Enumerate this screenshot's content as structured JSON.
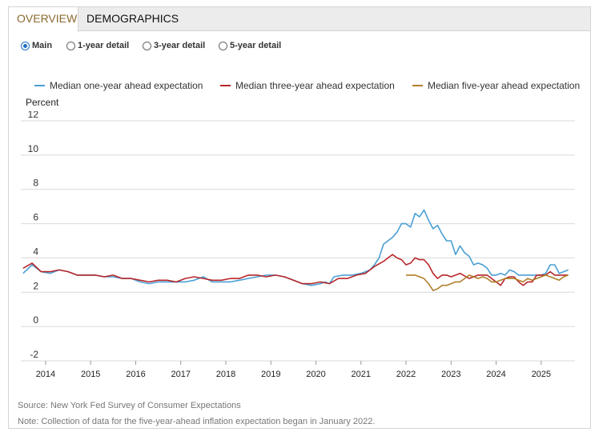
{
  "tabs": [
    {
      "label": "OVERVIEW",
      "active": true
    },
    {
      "label": "DEMOGRAPHICS",
      "active": false
    }
  ],
  "view_options": [
    {
      "label": "Main",
      "selected": true
    },
    {
      "label": "1-year detail",
      "selected": false
    },
    {
      "label": "3-year detail",
      "selected": false
    },
    {
      "label": "5-year detail",
      "selected": false
    }
  ],
  "source": "Source: New York Fed Survey of Consumer Expectations",
  "note": "Note: Collection of data for the five-year-ahead inflation expectation began in January 2022.",
  "chart_data": {
    "type": "line",
    "title": "",
    "xlabel": "",
    "ylabel": "Percent",
    "xlim": [
      2013.45,
      2025.75
    ],
    "ylim": [
      -2,
      12
    ],
    "yticks": [
      12,
      10,
      8,
      6,
      4,
      2,
      0,
      -2
    ],
    "xticks": [
      2014,
      2015,
      2016,
      2017,
      2018,
      2019,
      2020,
      2021,
      2022,
      2023,
      2024,
      2025
    ],
    "grid": true,
    "legend_position": "top",
    "series": [
      {
        "name": "Median one-year ahead expectation",
        "color": "#4a9fd4",
        "x": [
          2013.5,
          2013.7,
          2013.9,
          2014.1,
          2014.3,
          2014.5,
          2014.7,
          2014.9,
          2015.1,
          2015.3,
          2015.5,
          2015.7,
          2015.9,
          2016.1,
          2016.3,
          2016.5,
          2016.7,
          2016.9,
          2017.1,
          2017.3,
          2017.5,
          2017.7,
          2017.9,
          2018.1,
          2018.3,
          2018.5,
          2018.7,
          2018.9,
          2019.1,
          2019.3,
          2019.5,
          2019.7,
          2019.9,
          2020.1,
          2020.2,
          2020.3,
          2020.4,
          2020.6,
          2020.8,
          2021.0,
          2021.1,
          2021.2,
          2021.3,
          2021.4,
          2021.5,
          2021.6,
          2021.7,
          2021.8,
          2021.9,
          2022.0,
          2022.1,
          2022.2,
          2022.3,
          2022.4,
          2022.5,
          2022.6,
          2022.7,
          2022.8,
          2022.9,
          2023.0,
          2023.1,
          2023.2,
          2023.3,
          2023.4,
          2023.5,
          2023.6,
          2023.7,
          2023.8,
          2023.9,
          2024.0,
          2024.1,
          2024.2,
          2024.3,
          2024.4,
          2024.5,
          2024.6,
          2024.7,
          2024.8,
          2024.9,
          2025.0,
          2025.1,
          2025.2,
          2025.3,
          2025.4,
          2025.5,
          2025.6
        ],
        "y": [
          3.1,
          3.6,
          3.2,
          3.1,
          3.3,
          3.2,
          3.0,
          3.0,
          3.0,
          2.9,
          2.9,
          2.8,
          2.8,
          2.6,
          2.5,
          2.6,
          2.6,
          2.6,
          2.6,
          2.7,
          2.9,
          2.6,
          2.6,
          2.6,
          2.7,
          2.8,
          2.9,
          3.0,
          3.0,
          2.9,
          2.7,
          2.5,
          2.4,
          2.5,
          2.6,
          2.5,
          2.9,
          3.0,
          3.0,
          3.1,
          3.2,
          3.3,
          3.6,
          4.0,
          4.8,
          5.0,
          5.2,
          5.5,
          6.0,
          6.0,
          5.8,
          6.6,
          6.4,
          6.8,
          6.2,
          5.7,
          5.9,
          5.4,
          5.0,
          5.0,
          4.2,
          4.7,
          4.3,
          4.1,
          3.6,
          3.7,
          3.6,
          3.4,
          3.0,
          3.0,
          3.1,
          3.0,
          3.3,
          3.2,
          3.0,
          3.0,
          3.0,
          3.0,
          3.0,
          3.0,
          3.1,
          3.6,
          3.6,
          3.1,
          3.2,
          3.3
        ]
      },
      {
        "name": "Median three-year ahead expectation",
        "color": "#b8262b",
        "x": [
          2013.5,
          2013.7,
          2013.9,
          2014.1,
          2014.3,
          2014.5,
          2014.7,
          2014.9,
          2015.1,
          2015.3,
          2015.5,
          2015.7,
          2015.9,
          2016.1,
          2016.3,
          2016.5,
          2016.7,
          2016.9,
          2017.1,
          2017.3,
          2017.5,
          2017.7,
          2017.9,
          2018.1,
          2018.3,
          2018.5,
          2018.7,
          2018.9,
          2019.1,
          2019.3,
          2019.5,
          2019.7,
          2019.9,
          2020.1,
          2020.3,
          2020.5,
          2020.7,
          2020.9,
          2021.1,
          2021.3,
          2021.5,
          2021.6,
          2021.7,
          2021.8,
          2021.9,
          2022.0,
          2022.1,
          2022.2,
          2022.3,
          2022.4,
          2022.5,
          2022.6,
          2022.7,
          2022.8,
          2022.9,
          2023.0,
          2023.2,
          2023.4,
          2023.6,
          2023.8,
          2024.0,
          2024.1,
          2024.2,
          2024.3,
          2024.4,
          2024.5,
          2024.6,
          2024.7,
          2024.8,
          2024.9,
          2025.0,
          2025.1,
          2025.2,
          2025.3,
          2025.4,
          2025.5,
          2025.6
        ],
        "y": [
          3.4,
          3.7,
          3.2,
          3.2,
          3.3,
          3.2,
          3.0,
          3.0,
          3.0,
          2.9,
          3.0,
          2.8,
          2.8,
          2.7,
          2.6,
          2.7,
          2.7,
          2.6,
          2.8,
          2.9,
          2.8,
          2.7,
          2.7,
          2.8,
          2.8,
          3.0,
          3.0,
          2.9,
          3.0,
          2.9,
          2.7,
          2.5,
          2.5,
          2.6,
          2.5,
          2.8,
          2.8,
          3.0,
          3.1,
          3.5,
          3.8,
          4.0,
          4.2,
          4.0,
          3.9,
          3.6,
          3.7,
          4.0,
          3.9,
          3.9,
          3.6,
          3.1,
          2.8,
          3.0,
          3.0,
          2.9,
          3.1,
          2.8,
          3.0,
          3.0,
          2.6,
          2.4,
          2.8,
          2.9,
          2.9,
          2.6,
          2.4,
          2.6,
          2.6,
          3.0,
          3.0,
          3.0,
          3.2,
          3.0,
          3.0,
          3.0,
          3.0
        ]
      },
      {
        "name": "Median five-year ahead expectation",
        "color": "#b07f2a",
        "x": [
          2022.0,
          2022.1,
          2022.2,
          2022.3,
          2022.4,
          2022.5,
          2022.6,
          2022.7,
          2022.8,
          2022.9,
          2023.0,
          2023.1,
          2023.2,
          2023.3,
          2023.4,
          2023.5,
          2023.6,
          2023.7,
          2023.8,
          2023.9,
          2024.0,
          2024.1,
          2024.2,
          2024.3,
          2024.4,
          2024.5,
          2024.6,
          2024.7,
          2024.8,
          2024.9,
          2025.0,
          2025.1,
          2025.2,
          2025.3,
          2025.4,
          2025.5,
          2025.6
        ],
        "y": [
          3.0,
          3.0,
          3.0,
          2.9,
          2.8,
          2.5,
          2.1,
          2.2,
          2.4,
          2.4,
          2.5,
          2.6,
          2.6,
          2.8,
          3.0,
          2.9,
          2.8,
          2.9,
          2.8,
          2.6,
          2.6,
          2.7,
          2.8,
          2.8,
          2.8,
          2.7,
          2.6,
          2.8,
          2.7,
          2.8,
          2.9,
          3.0,
          2.9,
          2.8,
          2.7,
          2.9,
          3.0
        ]
      }
    ]
  }
}
